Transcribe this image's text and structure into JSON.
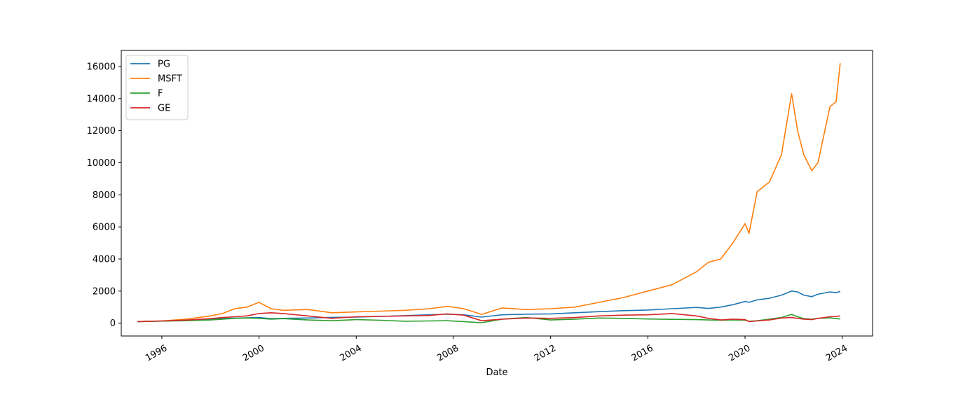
{
  "chart_data": {
    "type": "line",
    "xlabel": "Date",
    "ylabel": "",
    "title": "",
    "xlim": [
      "1994-05-01",
      "2025-04-01"
    ],
    "ylim": [
      -800,
      17000
    ],
    "x_ticks": [
      "1996",
      "2000",
      "2004",
      "2008",
      "2012",
      "2016",
      "2020",
      "2024"
    ],
    "y_ticks": [
      0,
      2000,
      4000,
      6000,
      8000,
      10000,
      12000,
      14000,
      16000
    ],
    "legend": "top-left",
    "grid": false,
    "x": [
      "1995-01",
      "1996-01",
      "1997-01",
      "1998-01",
      "1998-07",
      "1999-01",
      "1999-07",
      "2000-01",
      "2000-07",
      "2001-01",
      "2002-01",
      "2003-01",
      "2004-01",
      "2005-01",
      "2006-01",
      "2007-01",
      "2007-10",
      "2008-06",
      "2009-03",
      "2010-01",
      "2011-01",
      "2012-01",
      "2013-01",
      "2014-01",
      "2015-01",
      "2016-01",
      "2017-01",
      "2018-01",
      "2018-07",
      "2019-01",
      "2019-07",
      "2020-01",
      "2020-03",
      "2020-07",
      "2021-01",
      "2021-07",
      "2021-12",
      "2022-03",
      "2022-06",
      "2022-10",
      "2023-01",
      "2023-07",
      "2023-10",
      "2023-12"
    ],
    "series": [
      {
        "name": "PG",
        "color": "#1f77b4",
        "values": [
          100,
          130,
          180,
          260,
          300,
          310,
          330,
          350,
          280,
          300,
          320,
          360,
          380,
          420,
          470,
          520,
          560,
          520,
          380,
          520,
          560,
          580,
          650,
          720,
          780,
          820,
          900,
          980,
          920,
          1000,
          1150,
          1350,
          1300,
          1450,
          1550,
          1750,
          2000,
          1950,
          1750,
          1650,
          1800,
          1950,
          1900,
          1980
        ]
      },
      {
        "name": "MSFT",
        "color": "#ff7f0e",
        "values": [
          100,
          140,
          250,
          450,
          600,
          900,
          1000,
          1300,
          900,
          800,
          850,
          650,
          700,
          750,
          800,
          900,
          1050,
          900,
          550,
          950,
          850,
          900,
          1000,
          1300,
          1600,
          2000,
          2400,
          3200,
          3800,
          4000,
          5000,
          6200,
          5600,
          8200,
          8800,
          10500,
          14300,
          12000,
          10500,
          9500,
          10000,
          13500,
          13800,
          16200
        ]
      },
      {
        "name": "F",
        "color": "#2ca02c",
        "values": [
          100,
          130,
          150,
          200,
          250,
          300,
          320,
          300,
          250,
          280,
          200,
          150,
          220,
          180,
          120,
          140,
          150,
          100,
          30,
          250,
          350,
          200,
          250,
          320,
          300,
          260,
          240,
          220,
          200,
          180,
          200,
          180,
          120,
          150,
          250,
          350,
          550,
          400,
          280,
          250,
          300,
          330,
          280,
          260
        ]
      },
      {
        "name": "GE",
        "color": "#d62728",
        "values": [
          100,
          140,
          190,
          280,
          350,
          400,
          450,
          600,
          650,
          600,
          450,
          300,
          400,
          420,
          450,
          480,
          580,
          500,
          150,
          250,
          320,
          300,
          350,
          450,
          500,
          520,
          600,
          450,
          300,
          200,
          250,
          220,
          100,
          140,
          200,
          320,
          350,
          300,
          250,
          220,
          300,
          400,
          420,
          450
        ]
      }
    ]
  }
}
